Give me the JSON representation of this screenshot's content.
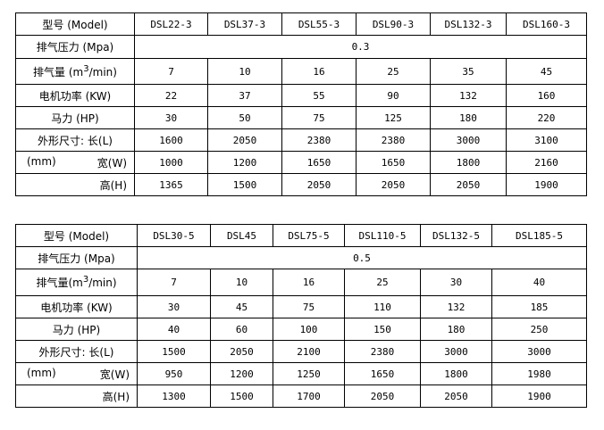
{
  "tables": [
    {
      "labels": {
        "model": "型号 (Model)",
        "pressure": "排气压力 (Mpa)",
        "flow": "排气量 (m",
        "flow_sup": "3",
        "flow_tail": "/min)",
        "power": "电机功率 (KW)",
        "hp": "马力 (HP)",
        "length": "外形尺寸: 长(L)",
        "mm": "(mm)",
        "width": "宽(W)",
        "height": "高(H)"
      },
      "models": [
        "DSL22-3",
        "DSL37-3",
        "DSL55-3",
        "DSL90-3",
        "DSL132-3",
        "DSL160-3"
      ],
      "pressure": "0.3",
      "flow": [
        "7",
        "10",
        "16",
        "25",
        "35",
        "45"
      ],
      "power": [
        "22",
        "37",
        "55",
        "90",
        "132",
        "160"
      ],
      "hp": [
        "30",
        "50",
        "75",
        "125",
        "180",
        "220"
      ],
      "length": [
        "1600",
        "2050",
        "2380",
        "2380",
        "3000",
        "3100"
      ],
      "width": [
        "1000",
        "1200",
        "1650",
        "1650",
        "1800",
        "2160"
      ],
      "height": [
        "1365",
        "1500",
        "2050",
        "2050",
        "2050",
        "1900"
      ]
    },
    {
      "labels": {
        "model": "型号 (Model)",
        "pressure": "排气压力 (Mpa)",
        "flow": "排气量(m",
        "flow_sup": "3",
        "flow_tail": "/min)",
        "power": "电机功率 (KW)",
        "hp": "马力 (HP)",
        "length": "外形尺寸: 长(L)",
        "mm": "(mm)",
        "width": "宽(W)",
        "height": "高(H)"
      },
      "models": [
        "DSL30-5",
        "DSL45",
        "DSL75-5",
        "DSL110-5",
        "DSL132-5",
        "DSL185-5"
      ],
      "pressure": "0.5",
      "flow": [
        "7",
        "10",
        "16",
        "25",
        "30",
        "40"
      ],
      "power": [
        "30",
        "45",
        "75",
        "110",
        "132",
        "185"
      ],
      "hp": [
        "40",
        "60",
        "100",
        "150",
        "180",
        "250"
      ],
      "length": [
        "1500",
        "2050",
        "2100",
        "2380",
        "3000",
        "3000"
      ],
      "width": [
        "950",
        "1200",
        "1250",
        "1650",
        "1800",
        "1980"
      ],
      "height": [
        "1300",
        "1500",
        "1700",
        "2050",
        "2050",
        "1900"
      ]
    }
  ]
}
